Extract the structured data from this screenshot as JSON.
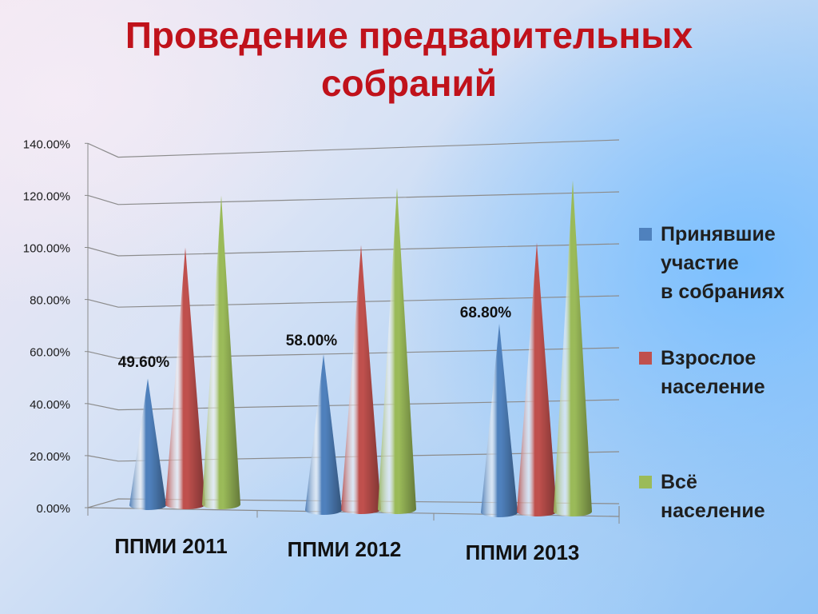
{
  "title_lines": [
    "Проведение предварительных",
    "собраний"
  ],
  "chart_data": {
    "type": "bar",
    "shape": "cone",
    "categories": [
      "ППМИ 2011",
      "ППМИ 2012",
      "ППМИ 2013"
    ],
    "series": [
      {
        "name": "Принявшие участие в собраниях",
        "values": [
          49.6,
          58.0,
          68.8
        ],
        "color": "#4f81bd",
        "label_values": [
          "49.60%",
          "58.00%",
          "68.80%"
        ]
      },
      {
        "name": "Взрослое население",
        "values": [
          100,
          100,
          100
        ],
        "color": "#c0504d"
      },
      {
        "name": "Всё население",
        "values": [
          120,
          122,
          124
        ],
        "color": "#9bbb59"
      }
    ],
    "ylim": [
      0,
      140
    ],
    "yticks": [
      "0.00%",
      "20.00%",
      "40.00%",
      "60.00%",
      "80.00%",
      "100.00%",
      "120.00%",
      "140.00%"
    ],
    "grid": true,
    "legend_position": "right"
  },
  "legend": {
    "items": [
      {
        "lines": [
          "Принявшие",
          "участие",
          "в собраниях"
        ],
        "color": "#4f81bd"
      },
      {
        "lines": [
          "Взрослое",
          "население"
        ],
        "color": "#c0504d"
      },
      {
        "lines": [
          "Всё",
          "население"
        ],
        "color": "#9bbb59"
      }
    ]
  }
}
